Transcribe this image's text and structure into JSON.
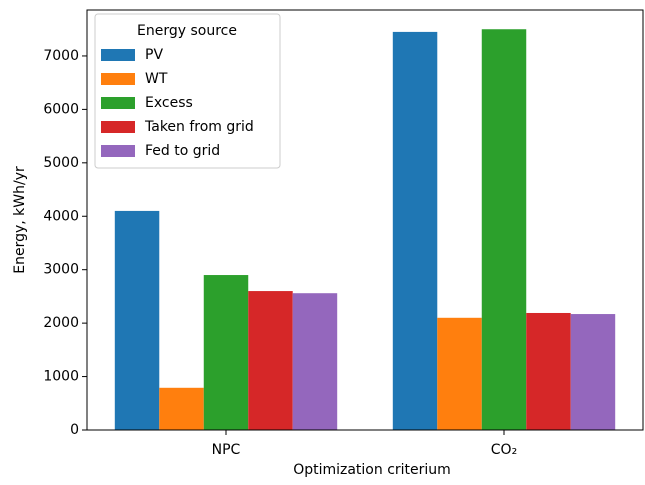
{
  "chart_data": {
    "type": "grouped_bar",
    "categories": [
      "NPC",
      "CO₂"
    ],
    "xlabel": "Optimization criterium",
    "ylabel": "Energy, kWh/yr",
    "legend_title": "Energy source",
    "legend": "upper left",
    "ylim": [
      0,
      7860
    ],
    "yticks": [
      0,
      1000,
      2000,
      3000,
      4000,
      5000,
      6000,
      7000
    ],
    "series": [
      {
        "name": "PV",
        "color": "#1f77b4",
        "values": [
          4100,
          7450
        ]
      },
      {
        "name": "WT",
        "color": "#ff7f0e",
        "values": [
          790,
          2100
        ]
      },
      {
        "name": "Excess",
        "color": "#2ca02c",
        "values": [
          2900,
          7500
        ]
      },
      {
        "name": "Taken from grid",
        "color": "#d62728",
        "values": [
          2600,
          2190
        ]
      },
      {
        "name": "Fed to grid",
        "color": "#9467bd",
        "values": [
          2560,
          2170
        ]
      }
    ]
  }
}
